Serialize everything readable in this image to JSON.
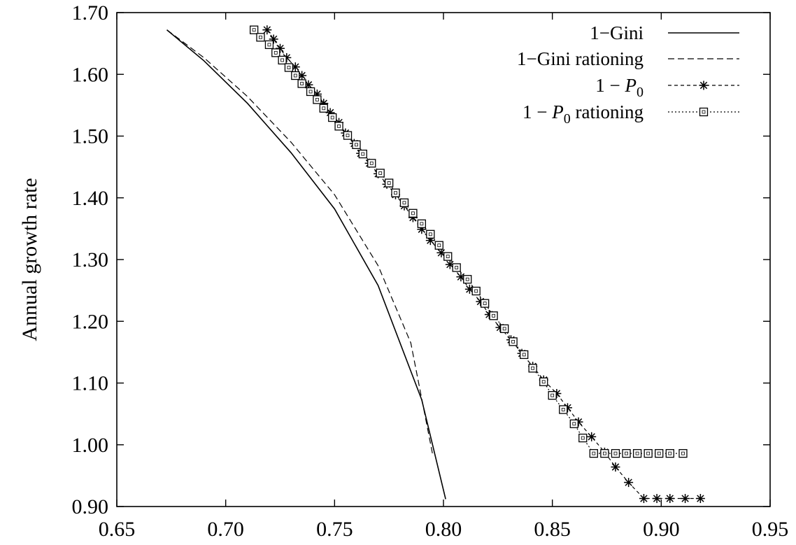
{
  "chart_data": {
    "type": "line",
    "title": "",
    "xlabel": "",
    "ylabel": "Annual growth rate",
    "xlim": [
      0.65,
      0.95
    ],
    "ylim": [
      0.9,
      1.7
    ],
    "xticks": [
      "0.65",
      "0.70",
      "0.75",
      "0.80",
      "0.85",
      "0.90",
      "0.95"
    ],
    "yticks": [
      "0.90",
      "1.00",
      "1.10",
      "1.20",
      "1.30",
      "1.40",
      "1.50",
      "1.60",
      "1.70"
    ],
    "grid": false,
    "legend_position": "top-right",
    "series": [
      {
        "name": "1−Gini",
        "style": "solid",
        "marker": "none",
        "x": [
          0.673,
          0.69,
          0.71,
          0.73,
          0.75,
          0.77,
          0.79,
          0.801
        ],
        "y": [
          1.672,
          1.622,
          1.553,
          1.473,
          1.382,
          1.258,
          1.073,
          0.912
        ]
      },
      {
        "name": "1−Gini rationing",
        "style": "dashed",
        "marker": "none",
        "x": [
          0.673,
          0.69,
          0.71,
          0.73,
          0.75,
          0.77,
          0.785,
          0.795
        ],
        "y": [
          1.672,
          1.627,
          1.564,
          1.49,
          1.405,
          1.29,
          1.165,
          0.985
        ]
      },
      {
        "name": "1 − P0",
        "name_base": "1 − P",
        "name_sub": "0",
        "style": "short-dash",
        "marker": "asterisk",
        "x": [
          0.719,
          0.722,
          0.725,
          0.728,
          0.732,
          0.735,
          0.738,
          0.742,
          0.745,
          0.748,
          0.752,
          0.755,
          0.759,
          0.762,
          0.766,
          0.77,
          0.774,
          0.778,
          0.782,
          0.786,
          0.79,
          0.794,
          0.799,
          0.803,
          0.808,
          0.812,
          0.817,
          0.821,
          0.826,
          0.831,
          0.836,
          0.841,
          0.846,
          0.852,
          0.857,
          0.862,
          0.868,
          0.874,
          0.879,
          0.885,
          0.892,
          0.898,
          0.904,
          0.911,
          0.918
        ],
        "y": [
          1.672,
          1.657,
          1.642,
          1.627,
          1.612,
          1.598,
          1.583,
          1.568,
          1.553,
          1.538,
          1.522,
          1.505,
          1.488,
          1.472,
          1.456,
          1.439,
          1.422,
          1.405,
          1.387,
          1.368,
          1.349,
          1.331,
          1.311,
          1.292,
          1.272,
          1.252,
          1.232,
          1.211,
          1.19,
          1.17,
          1.148,
          1.127,
          1.105,
          1.083,
          1.06,
          1.037,
          1.013,
          0.988,
          0.964,
          0.939,
          0.913,
          0.913,
          0.913,
          0.913,
          0.913
        ]
      },
      {
        "name": "1 − P0 rationing",
        "name_base": "1 − P",
        "name_sub": "0",
        "name_suffix": " rationing",
        "style": "dotted",
        "marker": "square",
        "x": [
          0.713,
          0.716,
          0.72,
          0.723,
          0.726,
          0.729,
          0.732,
          0.735,
          0.739,
          0.742,
          0.745,
          0.749,
          0.752,
          0.756,
          0.76,
          0.763,
          0.767,
          0.771,
          0.775,
          0.778,
          0.782,
          0.786,
          0.79,
          0.794,
          0.798,
          0.802,
          0.806,
          0.811,
          0.815,
          0.819,
          0.823,
          0.828,
          0.832,
          0.837,
          0.841,
          0.846,
          0.85,
          0.855,
          0.86,
          0.864,
          0.869,
          0.874,
          0.879,
          0.884,
          0.889,
          0.894,
          0.899,
          0.904,
          0.91
        ],
        "y": [
          1.672,
          1.66,
          1.648,
          1.635,
          1.623,
          1.611,
          1.598,
          1.585,
          1.572,
          1.559,
          1.545,
          1.53,
          1.516,
          1.501,
          1.486,
          1.471,
          1.456,
          1.44,
          1.424,
          1.408,
          1.392,
          1.375,
          1.358,
          1.341,
          1.323,
          1.305,
          1.287,
          1.268,
          1.249,
          1.229,
          1.209,
          1.188,
          1.167,
          1.146,
          1.124,
          1.102,
          1.08,
          1.057,
          1.034,
          1.011,
          0.986,
          0.986,
          0.986,
          0.986,
          0.986,
          0.986,
          0.986,
          0.986,
          0.986
        ]
      }
    ]
  }
}
